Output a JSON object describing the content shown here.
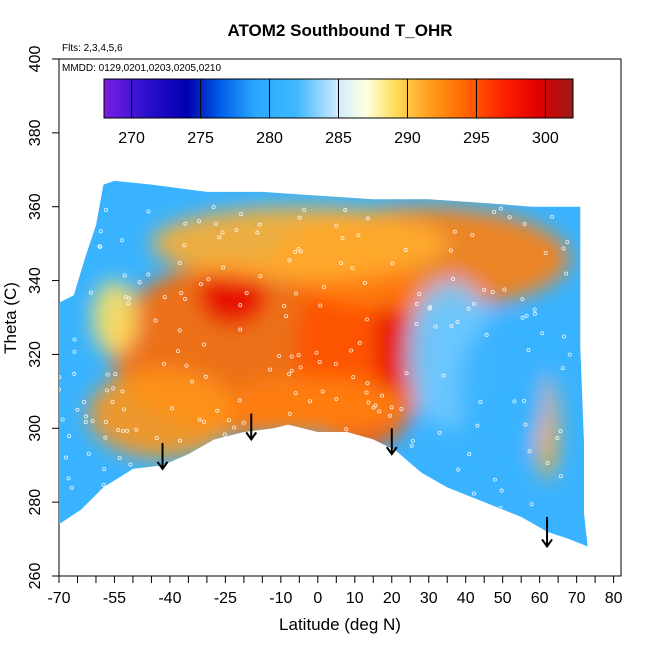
{
  "chart_data": {
    "type": "heatmap",
    "title": "ATOM2 Southbound T_OHR",
    "annotations": {
      "flights": "Flts: 2,3,4,5,6",
      "dates": "MMDD: 0129,0201,0203,0205,0210"
    },
    "xlabel": "Latitude (deg N)",
    "ylabel": "Theta (C)",
    "xlim": [
      -70,
      82
    ],
    "ylim": [
      260,
      400
    ],
    "x_ticks_minor": [
      -70,
      -65,
      -60,
      -55,
      -50,
      -45,
      -40,
      -35,
      -30,
      -25,
      -20,
      -15,
      -10,
      -5,
      0,
      5,
      10,
      15,
      20,
      25,
      30,
      35,
      40,
      45,
      50,
      55,
      60,
      65,
      70,
      75,
      80
    ],
    "x_tick_labels": [
      "-70",
      "-55",
      "-40",
      "-25",
      "-10",
      "0",
      "10",
      "20",
      "30",
      "40",
      "50",
      "60",
      "70",
      "80"
    ],
    "x_tick_label_values": [
      -70,
      -55,
      -40,
      -25,
      -10,
      0,
      10,
      20,
      30,
      40,
      50,
      60,
      70,
      80
    ],
    "y_ticks": [
      260,
      280,
      300,
      320,
      340,
      360,
      380,
      400
    ],
    "y_tick_labels": [
      "260",
      "280",
      "300",
      "320",
      "340",
      "360",
      "380",
      "400"
    ],
    "colorbar": {
      "min": 268,
      "max": 302,
      "ticks": [
        270,
        275,
        280,
        285,
        290,
        295,
        300
      ],
      "tick_labels": [
        "270",
        "275",
        "280",
        "285",
        "290",
        "295",
        "300"
      ],
      "stops": [
        {
          "v": 268,
          "color": "#7b1fe0"
        },
        {
          "v": 271,
          "color": "#2c10d0"
        },
        {
          "v": 274,
          "color": "#0000b0"
        },
        {
          "v": 276.5,
          "color": "#0060e8"
        },
        {
          "v": 279,
          "color": "#2aa8ff"
        },
        {
          "v": 282,
          "color": "#40b8ff"
        },
        {
          "v": 285,
          "color": "#d0ecff"
        },
        {
          "v": 287,
          "color": "#ffffe0"
        },
        {
          "v": 289,
          "color": "#ffe060"
        },
        {
          "v": 291.5,
          "color": "#ffa020"
        },
        {
          "v": 294,
          "color": "#ff6a00"
        },
        {
          "v": 297,
          "color": "#ff2000"
        },
        {
          "v": 299.5,
          "color": "#e00000"
        },
        {
          "v": 302,
          "color": "#9a1a1a"
        }
      ]
    },
    "boundary_top": [
      [
        -70,
        334
      ],
      [
        -66,
        336
      ],
      [
        -63,
        346
      ],
      [
        -60,
        355
      ],
      [
        -58,
        366
      ],
      [
        -55,
        367
      ],
      [
        -45,
        366
      ],
      [
        -30,
        364
      ],
      [
        -15,
        364
      ],
      [
        0,
        363
      ],
      [
        15,
        362
      ],
      [
        30,
        362
      ],
      [
        45,
        361
      ],
      [
        58,
        360
      ],
      [
        68,
        360
      ],
      [
        71,
        360
      ],
      [
        71,
        322
      ],
      [
        72,
        296
      ],
      [
        72,
        277
      ],
      [
        73,
        268
      ]
    ],
    "boundary_bottom": [
      [
        -70,
        274
      ],
      [
        -64,
        278
      ],
      [
        -58,
        284
      ],
      [
        -50,
        289
      ],
      [
        -42,
        290
      ],
      [
        -35,
        293
      ],
      [
        -28,
        297
      ],
      [
        -20,
        299
      ],
      [
        -12,
        300
      ],
      [
        -8,
        301
      ],
      [
        0,
        299
      ],
      [
        8,
        299
      ],
      [
        15,
        297
      ],
      [
        21,
        294
      ],
      [
        28,
        288
      ],
      [
        35,
        284
      ],
      [
        45,
        280
      ],
      [
        55,
        276
      ],
      [
        62,
        272
      ],
      [
        68,
        270
      ],
      [
        73,
        268
      ]
    ],
    "heat_blobs": [
      {
        "x": -18,
        "y": 322,
        "rx": 38,
        "ry": 24,
        "value": 294
      },
      {
        "x": 12,
        "y": 322,
        "rx": 18,
        "ry": 28,
        "value": 295
      },
      {
        "x": -23,
        "y": 336,
        "rx": 9,
        "ry": 8,
        "value": 299
      },
      {
        "x": 20,
        "y": 324,
        "rx": 4,
        "ry": 20,
        "value": 299
      },
      {
        "x": 28,
        "y": 346,
        "rx": 40,
        "ry": 14,
        "value": 293
      },
      {
        "x": -5,
        "y": 350,
        "rx": 40,
        "ry": 10,
        "value": 291
      },
      {
        "x": -42,
        "y": 304,
        "rx": 20,
        "ry": 12,
        "value": 292
      },
      {
        "x": 0,
        "y": 306,
        "rx": 25,
        "ry": 8,
        "value": 293
      },
      {
        "x": -55,
        "y": 330,
        "rx": 6,
        "ry": 10,
        "value": 289
      },
      {
        "x": 62,
        "y": 300,
        "rx": 3,
        "ry": 14,
        "value": 291
      },
      {
        "x": 36,
        "y": 320,
        "rx": 12,
        "ry": 20,
        "value": 283
      },
      {
        "x": 50,
        "y": 310,
        "rx": 12,
        "ry": 20,
        "value": 281
      }
    ],
    "background_value": 281,
    "arrows": [
      {
        "x": -42,
        "y_top": 296,
        "y_bottom": 289
      },
      {
        "x": -18,
        "y_top": 304,
        "y_bottom": 297
      },
      {
        "x": 20,
        "y_top": 300,
        "y_bottom": 293
      },
      {
        "x": 62,
        "y_top": 276,
        "y_bottom": 268
      }
    ]
  }
}
